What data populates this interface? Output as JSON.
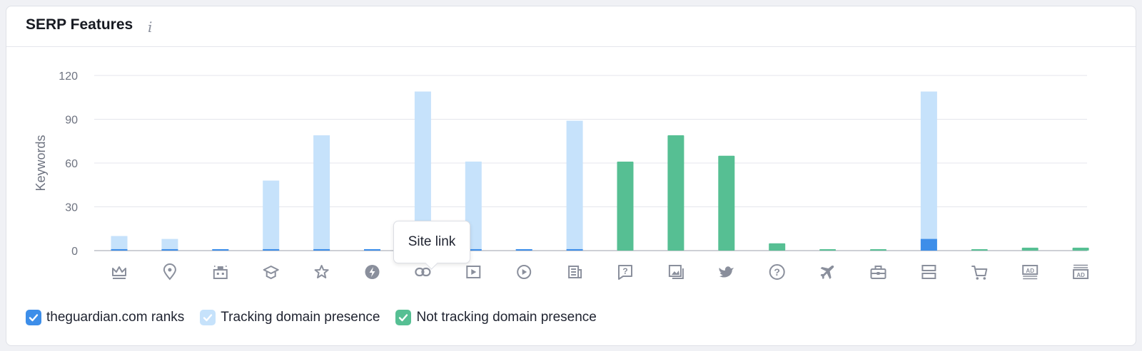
{
  "header": {
    "title": "SERP Features",
    "info_icon": "i"
  },
  "tooltip": {
    "text": "Site link"
  },
  "legend": [
    {
      "label": "theguardian.com ranks",
      "color": "#3d8ee9",
      "check_color": "#ffffff"
    },
    {
      "label": "Tracking domain presence",
      "color": "#c6e2fb",
      "check_color": "#ffffff"
    },
    {
      "label": "Not tracking domain presence",
      "color": "#56bf93",
      "check_color": "#ffffff"
    }
  ],
  "colors": {
    "ranks": "#3d8ee9",
    "tracking": "#c6e2fb",
    "not_tracking": "#56bf93",
    "icon": "#8a8f9c",
    "grid": "#e4e6ec",
    "axis": "#6e7380"
  },
  "chart_data": {
    "type": "bar",
    "ylabel": "Keywords",
    "xlabel": "",
    "ylim": [
      0,
      120
    ],
    "yticks": [
      0,
      30,
      60,
      90,
      120
    ],
    "grid": true,
    "legend_position": "bottom-left",
    "categories": [
      "crown-icon",
      "location-pin-icon",
      "hotel-icon",
      "graduation-cap-icon",
      "star-icon",
      "lightning-icon",
      "link-icon",
      "video-icon",
      "play-circle-icon",
      "news-icon",
      "question-bubble-icon",
      "image-icon",
      "twitter-icon",
      "question-circle-icon",
      "airplane-icon",
      "briefcase-icon",
      "layout-rows-icon",
      "shopping-cart-icon",
      "ad-top-icon",
      "ad-bottom-icon"
    ],
    "series": [
      {
        "name": "theguardian.com ranks",
        "values": [
          1,
          1,
          1,
          1,
          1,
          1,
          0,
          1,
          1,
          1,
          0,
          0,
          0,
          0,
          0,
          0,
          8,
          0,
          0,
          0
        ]
      },
      {
        "name": "Tracking domain presence",
        "values": [
          10,
          8,
          1,
          48,
          79,
          1,
          109,
          61,
          1,
          89,
          0,
          0,
          0,
          0,
          0,
          0,
          109,
          0,
          0,
          0
        ]
      },
      {
        "name": "Not tracking domain presence",
        "values": [
          0,
          0,
          0,
          0,
          0,
          0,
          0,
          0,
          0,
          0,
          61,
          79,
          65,
          5,
          1,
          1,
          0,
          1,
          2,
          2
        ]
      }
    ]
  }
}
